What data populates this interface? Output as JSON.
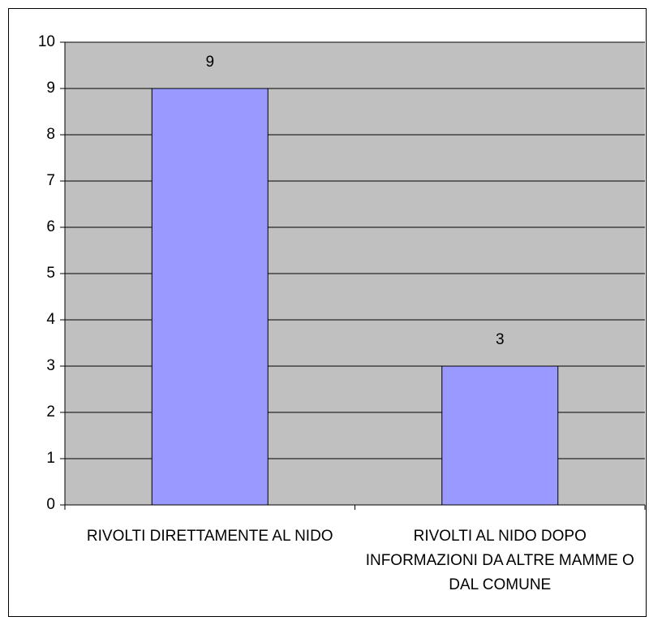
{
  "chart_data": {
    "type": "bar",
    "categories": [
      "RIVOLTI DIRETTAMENTE AL NIDO",
      "RIVOLTI AL NIDO DOPO INFORMAZIONI DA ALTRE MAMME O DAL COMUNE"
    ],
    "values": [
      9,
      3
    ],
    "color": "#9999ff",
    "ylim": [
      0,
      10
    ],
    "yticks": [
      0,
      1,
      2,
      3,
      4,
      5,
      6,
      7,
      8,
      9,
      10
    ],
    "grid": true
  }
}
